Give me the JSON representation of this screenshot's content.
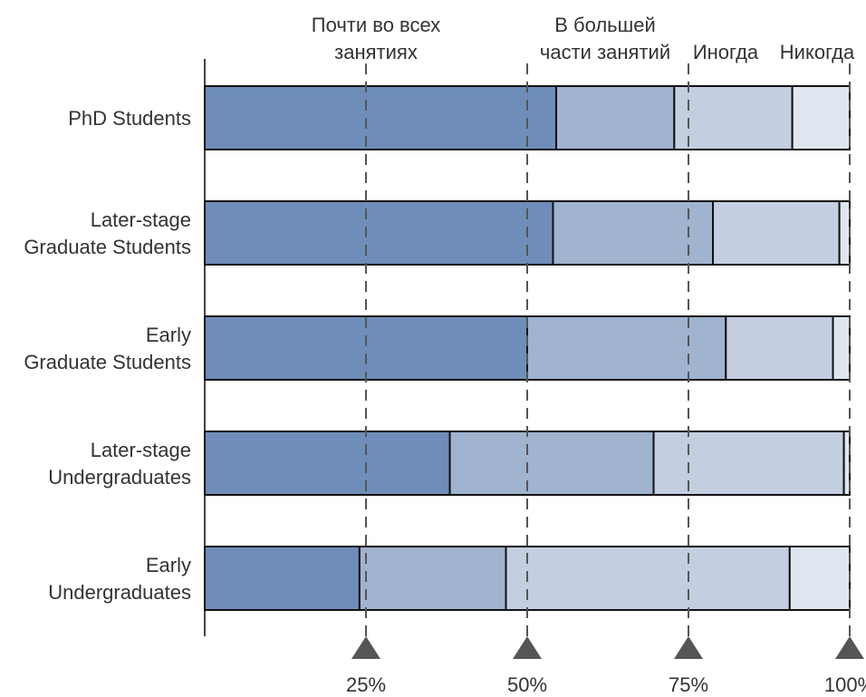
{
  "chart_data": {
    "type": "bar",
    "orientation": "horizontal",
    "stacked": true,
    "categories": [
      [
        "PhD Students"
      ],
      [
        "Later-stage",
        "Graduate Students"
      ],
      [
        "Early",
        "Graduate Students"
      ],
      [
        "Later-stage",
        "Undergraduates"
      ],
      [
        "Early",
        "Undergraduates"
      ]
    ],
    "series": [
      {
        "name": "Почти во всех занятиях",
        "label_lines": [
          "Почти во всех",
          "занятиях"
        ],
        "color": "#6e8eb9",
        "values": [
          54.5,
          54.0,
          50.0,
          38.0,
          24.0
        ]
      },
      {
        "name": "В большей части занятий",
        "label_lines": [
          "В большей",
          "части занятий"
        ],
        "color": "#a0b3cf",
        "values": [
          18.3,
          24.8,
          30.8,
          31.6,
          22.7
        ]
      },
      {
        "name": "Иногда",
        "label_lines": [
          "Иногда"
        ],
        "color": "#c3cfe0",
        "values": [
          18.3,
          19.6,
          16.6,
          29.5,
          44.0
        ]
      },
      {
        "name": "Никогда",
        "label_lines": [
          "Никогда"
        ],
        "color": "#e0e6ef",
        "values": [
          8.9,
          1.6,
          2.6,
          0.9,
          9.3
        ]
      }
    ],
    "xlim": [
      0,
      100
    ],
    "reference_lines": [
      25,
      50,
      75,
      100
    ],
    "tick_labels": [
      "25%",
      "50%",
      "75%",
      "100%"
    ],
    "marker_color": "#555555"
  }
}
